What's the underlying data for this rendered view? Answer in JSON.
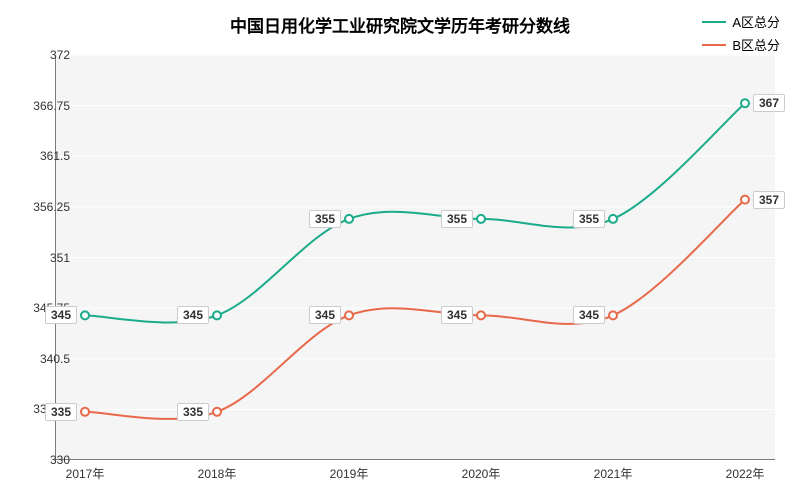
{
  "chart": {
    "type": "line",
    "title": "中国日用化学工业研究院文学历年考研分数线",
    "title_fontsize": 17,
    "background_color": "#ffffff",
    "plot_background_color": "#f5f5f5",
    "grid_color": "#ffffff",
    "axis_color": "#555555",
    "x": {
      "categories": [
        "2017年",
        "2018年",
        "2019年",
        "2020年",
        "2021年",
        "2022年"
      ],
      "label_fontsize": 12
    },
    "y": {
      "min": 330,
      "max": 372,
      "ticks": [
        330,
        335.25,
        340.5,
        345.75,
        351,
        356.25,
        361.5,
        366.75,
        372
      ],
      "label_fontsize": 12
    },
    "series": [
      {
        "name": "A区总分",
        "color": "#1aab8a",
        "line_width": 2,
        "marker": "circle",
        "marker_size": 4,
        "values": [
          345,
          345,
          355,
          355,
          355,
          367
        ]
      },
      {
        "name": "B区总分",
        "color": "#e8684a",
        "line_width": 2,
        "marker": "circle",
        "marker_size": 4,
        "values": [
          335,
          335,
          345,
          345,
          345,
          357
        ]
      }
    ],
    "legend": {
      "position": "top-right",
      "fontsize": 13
    }
  }
}
